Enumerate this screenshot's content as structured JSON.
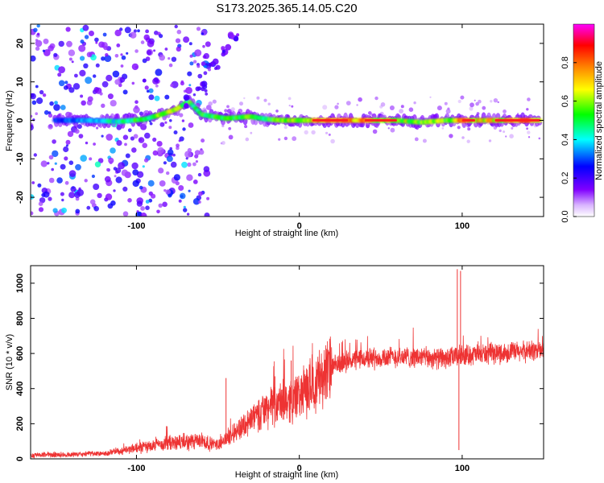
{
  "title": "S173.2025.365.14.05.C20",
  "chart_data": [
    {
      "type": "heatmap",
      "xlabel": "Height of straight line (km)",
      "ylabel": "Frequency (Hz)",
      "xlim": [
        -165,
        150
      ],
      "ylim": [
        -25,
        25
      ],
      "x_ticks": [
        -100,
        0,
        100
      ],
      "y_ticks": [
        -20,
        -10,
        0,
        10,
        20
      ],
      "colorbar": {
        "label": "Normalized spectral amplitude",
        "range": [
          0,
          1
        ],
        "ticks": [
          0.0,
          0.2,
          0.4,
          0.6,
          0.8
        ],
        "colormap": [
          "#ffffff",
          "#8000ff",
          "#0000ff",
          "#00ffff",
          "#00ff00",
          "#ffff00",
          "#ff8000",
          "#ff0000",
          "#ff00ff"
        ]
      },
      "ridge": [
        [
          -150,
          0.0,
          0.3
        ],
        [
          -130,
          0.0,
          0.4
        ],
        [
          -110,
          -0.3,
          0.5
        ],
        [
          -95,
          0.3,
          0.6
        ],
        [
          -85,
          1.5,
          0.7
        ],
        [
          -75,
          3.0,
          0.7
        ],
        [
          -68,
          5.0,
          0.6
        ],
        [
          -60,
          1.5,
          0.6
        ],
        [
          -45,
          0.5,
          0.6
        ],
        [
          -30,
          1.0,
          0.65
        ],
        [
          -20,
          0.3,
          0.6
        ],
        [
          -10,
          0.0,
          0.7
        ],
        [
          0,
          0.0,
          0.75
        ],
        [
          20,
          0.0,
          0.95
        ],
        [
          40,
          0.0,
          0.85
        ],
        [
          60,
          0.0,
          0.75
        ],
        [
          75,
          -0.5,
          0.7
        ],
        [
          90,
          0.0,
          0.65
        ],
        [
          100,
          0.0,
          0.9
        ],
        [
          115,
          0.0,
          0.8
        ],
        [
          130,
          0.0,
          0.85
        ],
        [
          145,
          0.0,
          0.9
        ]
      ],
      "branch": [
        [
          -70,
          5
        ],
        [
          -60,
          9
        ],
        [
          -52,
          14
        ],
        [
          -45,
          18
        ],
        [
          -40,
          21
        ]
      ]
    },
    {
      "type": "line",
      "xlabel": "Height of straight line (km)",
      "ylabel": "SNR (10 * v/v)",
      "xlim": [
        -165,
        150
      ],
      "ylim": [
        0,
        1100
      ],
      "x_ticks": [
        -100,
        0,
        100
      ],
      "y_ticks": [
        0,
        200,
        400,
        600,
        800,
        1000
      ],
      "color": "#ee3333",
      "trend": [
        [
          -165,
          20
        ],
        [
          -120,
          30
        ],
        [
          -100,
          60
        ],
        [
          -80,
          90
        ],
        [
          -60,
          100
        ],
        [
          -50,
          80
        ],
        [
          -40,
          150
        ],
        [
          -30,
          220
        ],
        [
          -20,
          290
        ],
        [
          -10,
          320
        ],
        [
          0,
          360
        ],
        [
          10,
          440
        ],
        [
          20,
          520
        ],
        [
          30,
          560
        ],
        [
          50,
          580
        ],
        [
          70,
          580
        ],
        [
          90,
          570
        ],
        [
          100,
          590
        ],
        [
          120,
          600
        ],
        [
          150,
          620
        ]
      ],
      "spikes": [
        [
          -45,
          460
        ],
        [
          -15,
          470
        ],
        [
          -5,
          560
        ],
        [
          97,
          1080
        ],
        [
          98,
          50
        ],
        [
          99,
          1070
        ]
      ]
    }
  ]
}
